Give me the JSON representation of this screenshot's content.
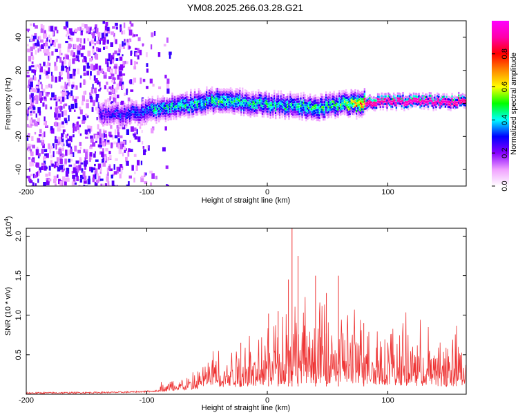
{
  "title": "YM08.2025.266.03.28.G21",
  "chart_data": [
    {
      "type": "heatmap",
      "xlabel": "Height of straight line (km)",
      "ylabel": "Frequency (Hz)",
      "xlim": [
        -200,
        165
      ],
      "ylim": [
        -50,
        50
      ],
      "xticks": [
        "-200",
        "-100",
        "0",
        "100"
      ],
      "xtick_values": [
        -200,
        -100,
        0,
        100
      ],
      "yticks": [
        "40",
        "20",
        "0",
        "-20",
        "-40"
      ],
      "ytick_values": [
        40,
        20,
        0,
        -20,
        -40
      ],
      "colorbar": {
        "label": "Normalized spectral amplitude",
        "ticks": [
          "0.0",
          "0.2",
          "0.4",
          "0.6",
          "0.8"
        ],
        "tick_values": [
          0.0,
          0.2,
          0.4,
          0.6,
          0.8
        ],
        "range": [
          0,
          1
        ],
        "stops": [
          "#ffffff",
          "#f0a0ff",
          "#8800ff",
          "#0000ff",
          "#00ffff",
          "#00ff00",
          "#ffff00",
          "#ff8800",
          "#ff0000",
          "#ff00aa",
          "#ff00ff"
        ]
      },
      "ridge": {
        "x": [
          -140,
          -120,
          -100,
          -80,
          -60,
          -40,
          -20,
          0,
          20,
          40,
          60,
          80,
          100,
          120,
          140,
          165
        ],
        "center_hz": [
          -6,
          -6,
          -4,
          -2,
          1,
          3,
          1,
          0,
          -1,
          -2,
          0,
          1,
          2,
          2,
          2,
          2
        ],
        "peak_amplitude": [
          0.3,
          0.35,
          0.45,
          0.5,
          0.5,
          0.55,
          0.5,
          0.5,
          0.5,
          0.55,
          0.55,
          0.85,
          0.9,
          0.9,
          0.9,
          0.85
        ]
      },
      "noise_region_x": [
        -200,
        -90
      ]
    },
    {
      "type": "line",
      "xlabel": "Height of straight line (km)",
      "ylabel": "SNR (10 * v/v)",
      "y_multiplier": "(x10",
      "y_multiplier_exp": "4",
      "y_multiplier_close": ")",
      "xlim": [
        -200,
        165
      ],
      "ylim": [
        0,
        2.1
      ],
      "xticks": [
        "-200",
        "-100",
        "0",
        "100"
      ],
      "xtick_values": [
        -200,
        -100,
        0,
        100
      ],
      "yticks": [
        "2.0",
        "1.5",
        "1.0",
        "0.5"
      ],
      "ytick_values": [
        2.0,
        1.5,
        1.0,
        0.5
      ],
      "series_color": "#ee3333",
      "envelope": {
        "x": [
          -200,
          -150,
          -120,
          -100,
          -80,
          -60,
          -40,
          -20,
          0,
          20,
          40,
          60,
          80,
          100,
          120,
          140,
          165
        ],
        "y": [
          0.01,
          0.02,
          0.03,
          0.05,
          0.08,
          0.12,
          0.28,
          0.38,
          0.45,
          0.55,
          0.55,
          0.52,
          0.48,
          0.45,
          0.42,
          0.4,
          0.38
        ]
      },
      "spikes": [
        {
          "x": 20.5,
          "y": 2.1
        },
        {
          "x": 25.5,
          "y": 1.75
        },
        {
          "x": 17.5,
          "y": 1.45
        },
        {
          "x": 59,
          "y": 1.5
        },
        {
          "x": 1,
          "y": 1.02
        },
        {
          "x": 40,
          "y": 1.5
        },
        {
          "x": 49,
          "y": 1.28
        },
        {
          "x": -22,
          "y": 0.65
        },
        {
          "x": 9,
          "y": 1.05
        },
        {
          "x": 80,
          "y": 0.9
        }
      ]
    }
  ]
}
